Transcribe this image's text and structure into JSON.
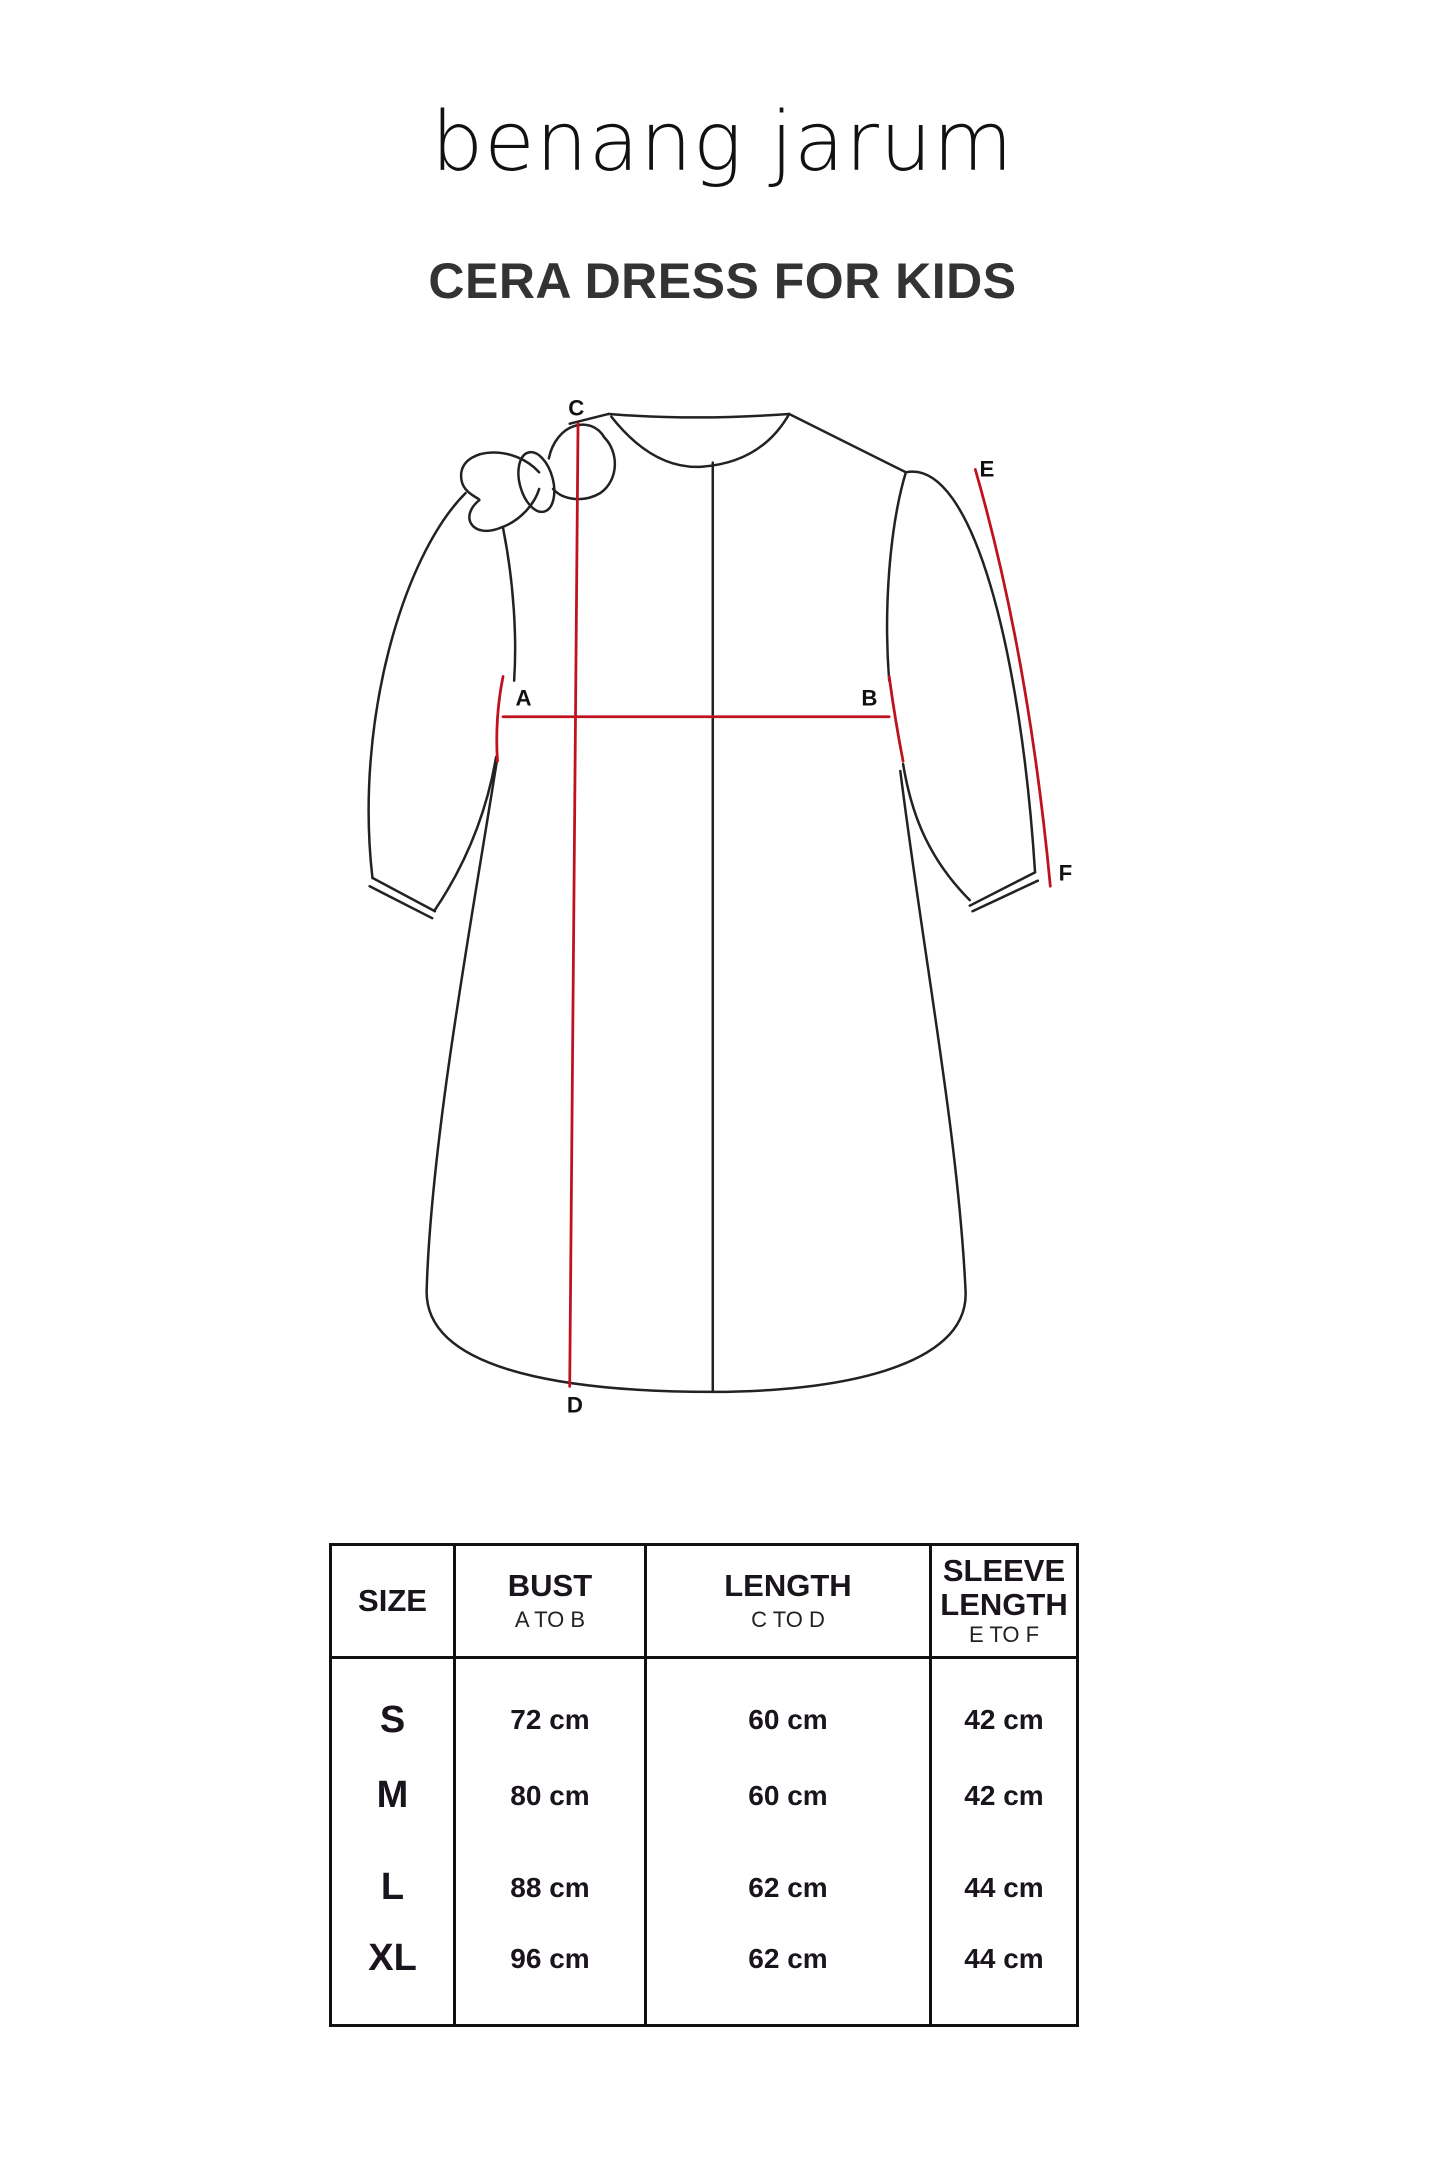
{
  "brand": {
    "logo_text": "benang jarum"
  },
  "title": "CERA DRESS FOR KIDS",
  "diagram": {
    "points": {
      "A": "A",
      "B": "B",
      "C": "C",
      "D": "D",
      "E": "E",
      "F": "F"
    },
    "outline_color": "#222222",
    "measure_color": "#c0121e"
  },
  "table": {
    "headers": [
      {
        "label": "SIZE",
        "sub": ""
      },
      {
        "label": "BUST",
        "sub": "A TO B"
      },
      {
        "label": "LENGTH",
        "sub": "C TO D"
      },
      {
        "label": "SLEEVE LENGTH",
        "sub": "E TO F"
      }
    ],
    "rows": [
      {
        "size": "S",
        "bust": "72 cm",
        "length": "60 cm",
        "sleeve": "42 cm"
      },
      {
        "size": "M",
        "bust": "80 cm",
        "length": "60 cm",
        "sleeve": "42 cm"
      },
      {
        "size": "L",
        "bust": "88 cm",
        "length": "62 cm",
        "sleeve": "44 cm"
      },
      {
        "size": "XL",
        "bust": "96 cm",
        "length": "62 cm",
        "sleeve": "44 cm"
      }
    ]
  }
}
